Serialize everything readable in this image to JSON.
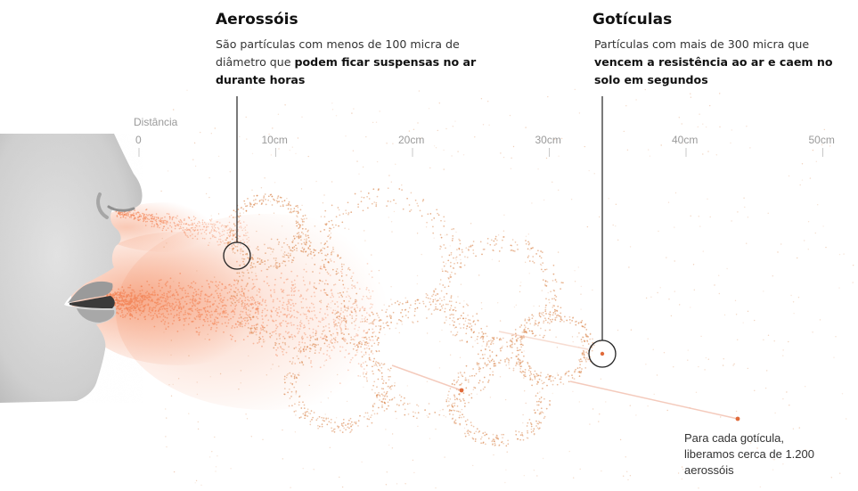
{
  "aerosols": {
    "title": "Aerossóis",
    "text_start": "São partículas com menos de 100 micra de diâmetro que ",
    "text_bold": "podem ficar suspensas no ar durante horas"
  },
  "droplets": {
    "title": "Gotículas",
    "text_start": "Partículas com mais de 300 micra que ",
    "text_bold": "vencem a resistência ao ar e caem no solo em segundos"
  },
  "distance_axis": {
    "label": "Distância",
    "ticks": [
      {
        "label": "0",
        "value": 0
      },
      {
        "label": "10cm",
        "value": 10
      },
      {
        "label": "20cm",
        "value": 20
      },
      {
        "label": "30cm",
        "value": 30
      },
      {
        "label": "40cm",
        "value": 40
      },
      {
        "label": "50cm",
        "value": 50
      }
    ]
  },
  "ratio_note": "Para cada gotícula, liberamos cerca de 1.200 aerossóis",
  "colors": {
    "aerosol": "#f4875a",
    "droplet": "#d9844a",
    "line": "#222222",
    "tick": "#c8c8c8"
  }
}
